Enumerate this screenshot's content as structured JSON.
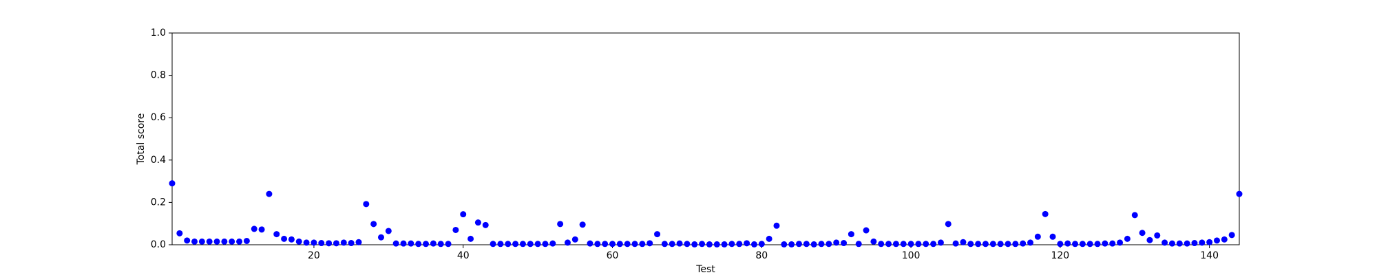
{
  "chart_data": {
    "type": "scatter",
    "xlabel": "Test",
    "ylabel": "Total score",
    "color": "#0000ff",
    "x": [
      1,
      2,
      3,
      4,
      5,
      6,
      7,
      8,
      9,
      10,
      11,
      12,
      13,
      14,
      15,
      16,
      17,
      18,
      19,
      20,
      21,
      22,
      23,
      24,
      25,
      26,
      27,
      28,
      29,
      30,
      31,
      32,
      33,
      34,
      35,
      36,
      37,
      38,
      39,
      40,
      41,
      42,
      43,
      44,
      45,
      46,
      47,
      48,
      49,
      50,
      51,
      52,
      53,
      54,
      55,
      56,
      57,
      58,
      59,
      60,
      61,
      62,
      63,
      64,
      65,
      66,
      67,
      68,
      69,
      70,
      71,
      72,
      73,
      74,
      75,
      76,
      77,
      78,
      79,
      80,
      81,
      82,
      83,
      84,
      85,
      86,
      87,
      88,
      89,
      90,
      91,
      92,
      93,
      94,
      95,
      96,
      97,
      98,
      99,
      100,
      101,
      102,
      103,
      104,
      105,
      106,
      107,
      108,
      109,
      110,
      111,
      112,
      113,
      114,
      115,
      116,
      117,
      118,
      119,
      120,
      121,
      122,
      123,
      124,
      125,
      126,
      127,
      128,
      129,
      130,
      131,
      132,
      133,
      134,
      135,
      136,
      137,
      138,
      139,
      140,
      141,
      142,
      143,
      144
    ],
    "values": [
      0.29,
      0.054,
      0.02,
      0.015,
      0.015,
      0.015,
      0.015,
      0.015,
      0.015,
      0.015,
      0.018,
      0.075,
      0.072,
      0.24,
      0.05,
      0.028,
      0.025,
      0.015,
      0.01,
      0.01,
      0.008,
      0.007,
      0.007,
      0.01,
      0.008,
      0.012,
      0.192,
      0.098,
      0.035,
      0.065,
      0.006,
      0.006,
      0.006,
      0.004,
      0.004,
      0.006,
      0.004,
      0.004,
      0.07,
      0.144,
      0.028,
      0.105,
      0.093,
      0.004,
      0.004,
      0.004,
      0.004,
      0.004,
      0.004,
      0.004,
      0.004,
      0.006,
      0.098,
      0.01,
      0.025,
      0.095,
      0.006,
      0.004,
      0.004,
      0.004,
      0.004,
      0.004,
      0.004,
      0.004,
      0.007,
      0.05,
      0.004,
      0.004,
      0.006,
      0.004,
      0.002,
      0.004,
      0.002,
      0.002,
      0.002,
      0.004,
      0.004,
      0.007,
      0.002,
      0.004,
      0.028,
      0.09,
      0.002,
      0.002,
      0.004,
      0.004,
      0.002,
      0.004,
      0.004,
      0.01,
      0.008,
      0.05,
      0.004,
      0.068,
      0.015,
      0.004,
      0.004,
      0.004,
      0.004,
      0.004,
      0.004,
      0.004,
      0.004,
      0.01,
      0.098,
      0.006,
      0.012,
      0.004,
      0.004,
      0.004,
      0.004,
      0.004,
      0.004,
      0.004,
      0.006,
      0.01,
      0.038,
      0.145,
      0.038,
      0.004,
      0.006,
      0.004,
      0.004,
      0.004,
      0.004,
      0.006,
      0.006,
      0.01,
      0.028,
      0.14,
      0.056,
      0.022,
      0.044,
      0.01,
      0.006,
      0.006,
      0.006,
      0.008,
      0.01,
      0.012,
      0.02,
      0.025,
      0.046,
      0.24
    ],
    "xlim": [
      1,
      144
    ],
    "xticks": [
      20,
      40,
      60,
      80,
      100,
      120,
      140
    ],
    "ylim": [
      0,
      1
    ],
    "yticks": [
      {
        "value": 0,
        "label": "0.0"
      },
      {
        "value": 0.2,
        "label": "0.2"
      },
      {
        "value": 0.4,
        "label": "0.4"
      },
      {
        "value": 0.6,
        "label": "0.6"
      },
      {
        "value": 0.8,
        "label": "0.8"
      },
      {
        "value": 1,
        "label": "1.0"
      }
    ],
    "grid": false
  }
}
